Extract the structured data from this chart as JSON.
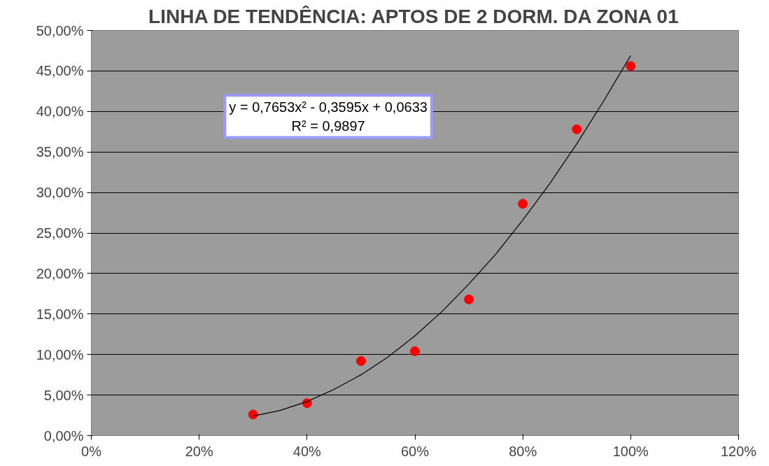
{
  "chart_data": {
    "type": "scatter",
    "title": "LINHA DE TENDÊNCIA: APTOS DE 2 DORM. DA ZONA 01",
    "x": [
      30,
      40,
      50,
      60,
      70,
      80,
      90,
      100
    ],
    "series": [
      {
        "color": "#ff0000",
        "marker": "circle",
        "values": [
          2.6,
          4.0,
          9.2,
          10.4,
          16.8,
          28.6,
          37.8,
          45.6
        ]
      },
      {
        "type": "line",
        "color": "#000000",
        "x": [
          30,
          35,
          40,
          45,
          50,
          55,
          60,
          65,
          70,
          75,
          80,
          85,
          90,
          95,
          100
        ],
        "values": [
          2.4,
          3.1,
          4.2,
          5.7,
          7.5,
          9.7,
          12.3,
          15.3,
          18.7,
          22.4,
          26.6,
          31.1,
          36.0,
          41.3,
          46.9
        ]
      }
    ],
    "annotations": [
      "y = 0,7653x² - 0,3595x + 0,0633",
      "R² = 0,9897"
    ],
    "xlim": [
      0,
      120
    ],
    "xticks": [
      {
        "value": 0,
        "label": "0%"
      },
      {
        "value": 20,
        "label": "20%"
      },
      {
        "value": 40,
        "label": "40%"
      },
      {
        "value": 60,
        "label": "60%"
      },
      {
        "value": 80,
        "label": "80%"
      },
      {
        "value": 100,
        "label": "100%"
      },
      {
        "value": 120,
        "label": "120%"
      }
    ],
    "ylim": [
      0,
      50
    ],
    "yticks": [
      {
        "value": 0,
        "label": "0,00%"
      },
      {
        "value": 5,
        "label": "5,00%"
      },
      {
        "value": 10,
        "label": "10,00%"
      },
      {
        "value": 15,
        "label": "15,00%"
      },
      {
        "value": 20,
        "label": "20,00%"
      },
      {
        "value": 25,
        "label": "25,00%"
      },
      {
        "value": 30,
        "label": "30,00%"
      },
      {
        "value": 35,
        "label": "35,00%"
      },
      {
        "value": 40,
        "label": "40,00%"
      },
      {
        "value": 45,
        "label": "45,00%"
      },
      {
        "value": 50,
        "label": "50,00%"
      }
    ],
    "grid": "y"
  }
}
